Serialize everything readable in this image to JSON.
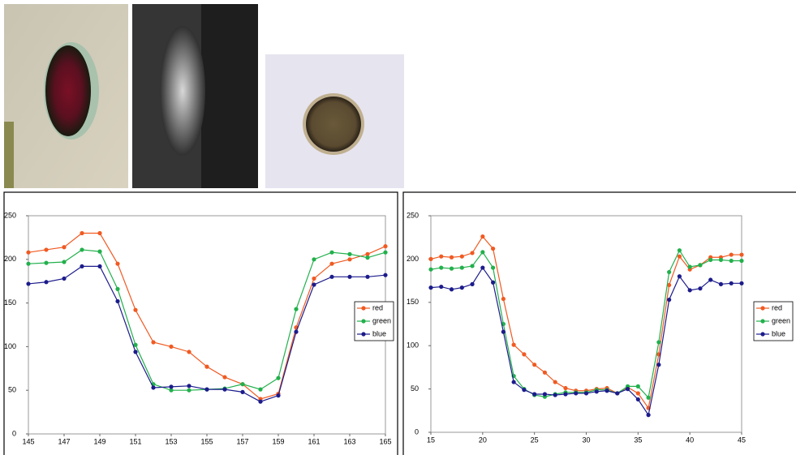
{
  "chart_data": [
    {
      "type": "line",
      "x": [
        145,
        146,
        147,
        148,
        149,
        150,
        151,
        152,
        153,
        154,
        155,
        156,
        157,
        158,
        159,
        160,
        161,
        162,
        163,
        164,
        165
      ],
      "xlim": [
        145,
        165
      ],
      "xticks": [
        145,
        147,
        149,
        151,
        153,
        155,
        157,
        159,
        161,
        163,
        165
      ],
      "ylim": [
        0,
        250
      ],
      "yticks": [
        0,
        50,
        100,
        150,
        200,
        250
      ],
      "legend": "right",
      "series": [
        {
          "name": "red",
          "color": "#f05a22",
          "values": [
            208,
            211,
            214,
            230,
            230,
            195,
            142,
            105,
            100,
            94,
            77,
            65,
            57,
            40,
            46,
            122,
            178,
            195,
            200,
            206,
            215
          ]
        },
        {
          "name": "green",
          "color": "#22b04c",
          "values": [
            195,
            196,
            197,
            211,
            209,
            166,
            102,
            57,
            50,
            50,
            51,
            52,
            57,
            51,
            64,
            143,
            200,
            208,
            206,
            202,
            208
          ]
        },
        {
          "name": "blue",
          "color": "#1c1c8c",
          "values": [
            172,
            174,
            178,
            192,
            192,
            152,
            94,
            53,
            54,
            55,
            51,
            51,
            48,
            37,
            44,
            117,
            171,
            180,
            180,
            180,
            182
          ]
        }
      ]
    },
    {
      "type": "line",
      "x": [
        15,
        16,
        17,
        18,
        19,
        20,
        21,
        22,
        23,
        24,
        25,
        26,
        27,
        28,
        29,
        30,
        31,
        32,
        33,
        34,
        35,
        36,
        37,
        38,
        39,
        40,
        41,
        42,
        43,
        44,
        45
      ],
      "xlim": [
        15,
        45
      ],
      "xticks": [
        15,
        20,
        25,
        30,
        35,
        40,
        45
      ],
      "ylim": [
        0,
        250
      ],
      "yticks": [
        0,
        50,
        100,
        150,
        200,
        250
      ],
      "legend": "right",
      "series": [
        {
          "name": "red",
          "color": "#f05a22",
          "values": [
            200,
            203,
            202,
            203,
            207,
            226,
            212,
            154,
            101,
            90,
            78,
            69,
            58,
            51,
            48,
            48,
            50,
            51,
            45,
            52,
            45,
            28,
            90,
            170,
            203,
            188,
            193,
            202,
            202,
            205,
            205
          ]
        },
        {
          "name": "green",
          "color": "#22b04c",
          "values": [
            188,
            190,
            189,
            190,
            192,
            208,
            190,
            125,
            65,
            50,
            43,
            41,
            44,
            46,
            46,
            46,
            49,
            49,
            45,
            53,
            53,
            40,
            104,
            185,
            210,
            191,
            193,
            199,
            199,
            198,
            198
          ]
        },
        {
          "name": "blue",
          "color": "#1c1c8c",
          "values": [
            167,
            168,
            165,
            167,
            171,
            190,
            173,
            116,
            58,
            49,
            44,
            44,
            43,
            44,
            45,
            45,
            47,
            48,
            45,
            50,
            38,
            20,
            78,
            153,
            180,
            164,
            166,
            176,
            171,
            172,
            172
          ]
        }
      ]
    }
  ]
}
